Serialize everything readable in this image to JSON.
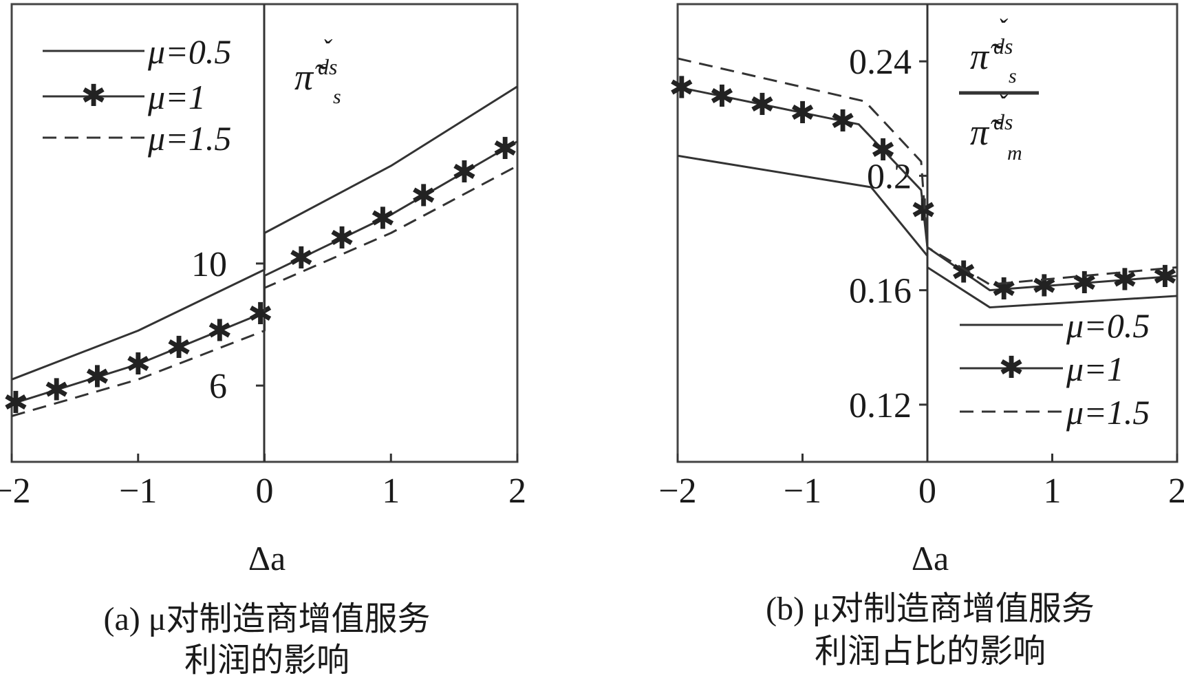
{
  "chart_data": [
    {
      "type": "line",
      "panel": "a",
      "xlabel": "Δa",
      "ylabel": "",
      "xlim": [
        -2,
        2
      ],
      "ylim": [
        3.5,
        18.5
      ],
      "xticks": [
        "−2",
        "−1",
        "0",
        "1",
        "2"
      ],
      "yticks": [
        "6",
        "10"
      ],
      "annotation": {
        "main": "π̃",
        "accent": "ˇ",
        "sup": "ds",
        "sub": "s"
      },
      "caption": [
        "(a) μ对制造商增值服务",
        "利润的影响"
      ],
      "legend_position": "top-left",
      "series": [
        {
          "name": "μ=0.5",
          "style": "solid",
          "points": [
            [
              -2,
              6.2
            ],
            [
              -1,
              7.8
            ],
            [
              0,
              9.8
            ],
            [
              0,
              11.0
            ],
            [
              1,
              13.2
            ],
            [
              2,
              15.8
            ]
          ]
        },
        {
          "name": "μ=1",
          "style": "star",
          "points": [
            [
              -2,
              5.4
            ],
            [
              -1,
              6.7
            ],
            [
              0,
              8.4
            ],
            [
              0,
              9.6
            ],
            [
              1,
              11.6
            ],
            [
              2,
              14.0
            ]
          ]
        },
        {
          "name": "μ=1.5",
          "style": "dashed",
          "points": [
            [
              -2,
              5.0
            ],
            [
              -1,
              6.2
            ],
            [
              0,
              7.8
            ],
            [
              0,
              9.2
            ],
            [
              1,
              11.0
            ],
            [
              2,
              13.2
            ]
          ]
        }
      ]
    },
    {
      "type": "line",
      "panel": "b",
      "xlabel": "Δa",
      "ylabel": "",
      "xlim": [
        -2,
        2
      ],
      "ylim": [
        0.1,
        0.26
      ],
      "xticks": [
        "−2",
        "−1",
        "0",
        "1",
        "2"
      ],
      "yticks": [
        "0.12",
        "0.16",
        "0.2",
        "0.24"
      ],
      "annotation": {
        "main": "π̃",
        "accent": "ˇ",
        "sup": "ds",
        "sub_num": "s",
        "sub_den": "m"
      },
      "caption": [
        "(b) μ对制造商增值服务",
        "利润占比的影响"
      ],
      "legend_position": "bottom-right",
      "series": [
        {
          "name": "μ=0.5",
          "style": "solid",
          "points": [
            [
              -2,
              0.207
            ],
            [
              -0.45,
              0.196
            ],
            [
              0,
              0.172
            ],
            [
              0,
              0.168
            ],
            [
              0.5,
              0.154
            ],
            [
              2,
              0.158
            ]
          ]
        },
        {
          "name": "μ=1",
          "style": "star",
          "points": [
            [
              -2,
              0.231
            ],
            [
              -0.55,
              0.218
            ],
            [
              -0.05,
              0.195
            ],
            [
              0,
              0.175
            ],
            [
              0.5,
              0.16
            ],
            [
              2,
              0.165
            ]
          ]
        },
        {
          "name": "μ=1.5",
          "style": "dashed",
          "points": [
            [
              -2,
              0.241
            ],
            [
              -0.5,
              0.226
            ],
            [
              -0.05,
              0.205
            ],
            [
              0,
              0.175
            ],
            [
              0.5,
              0.162
            ],
            [
              2,
              0.168
            ]
          ]
        }
      ]
    }
  ]
}
